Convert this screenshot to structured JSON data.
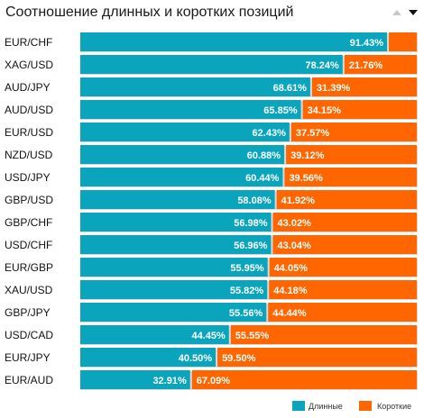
{
  "title": "Соотношение длинных и коротких позиций",
  "colors": {
    "long": "#0aa5bd",
    "short": "#ff6600",
    "track": "#d9d9d9"
  },
  "icons": {
    "sort_up": "sort-up-icon",
    "sort_down": "sort-down-icon"
  },
  "legend": {
    "long": "Длинные",
    "short": "Короткие"
  },
  "chart_data": {
    "type": "bar",
    "stacked": true,
    "orientation": "horizontal",
    "categories": [
      "EUR/CHF",
      "XAG/USD",
      "AUD/JPY",
      "AUD/USD",
      "EUR/USD",
      "NZD/USD",
      "USD/JPY",
      "GBP/USD",
      "GBP/CHF",
      "USD/CHF",
      "EUR/GBP",
      "XAU/USD",
      "GBP/JPY",
      "USD/CAD",
      "EUR/JPY",
      "EUR/AUD"
    ],
    "series": [
      {
        "name": "Длинные",
        "values": [
          91.43,
          78.24,
          68.61,
          65.85,
          62.43,
          60.88,
          60.44,
          58.08,
          56.98,
          56.96,
          55.95,
          55.82,
          55.56,
          44.45,
          40.5,
          32.91
        ],
        "labels": [
          "91.43%",
          "78.24%",
          "68.61%",
          "65.85%",
          "62.43%",
          "60.88%",
          "60.44%",
          "58.08%",
          "56.98%",
          "56.96%",
          "55.95%",
          "55.82%",
          "55.56%",
          "44.45%",
          "40.50%",
          "32.91%"
        ]
      },
      {
        "name": "Короткие",
        "values": [
          8.57,
          21.76,
          31.39,
          34.15,
          37.57,
          39.12,
          39.56,
          41.92,
          43.02,
          43.04,
          44.05,
          44.18,
          44.44,
          55.55,
          59.5,
          67.09
        ],
        "labels": [
          "",
          "21.76%",
          "31.39%",
          "34.15%",
          "37.57%",
          "39.12%",
          "39.56%",
          "41.92%",
          "43.02%",
          "43.04%",
          "44.05%",
          "44.18%",
          "44.44%",
          "55.55%",
          "59.50%",
          "67.09%"
        ]
      }
    ],
    "xlim": [
      0,
      100
    ],
    "legend_position": "bottom-right"
  }
}
